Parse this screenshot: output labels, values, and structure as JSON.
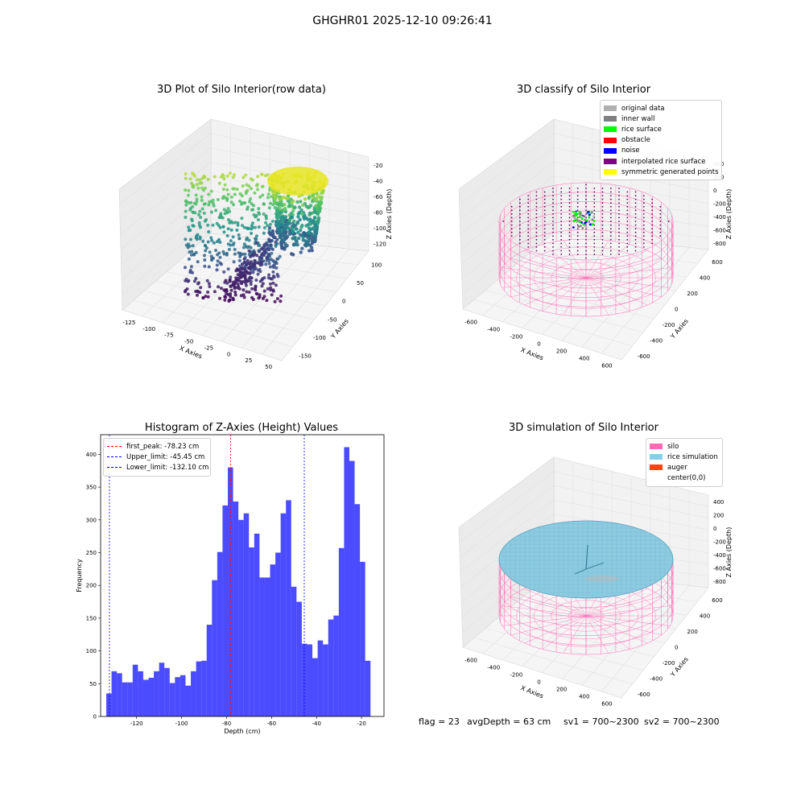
{
  "suptitle": "GHGHR01 2025-12-10 09:26:41",
  "footer": {
    "flag": "flag = 23",
    "avg_depth": "avgDepth = 63 cm",
    "sv1": "sv1 = 700~2300",
    "sv2": "sv2 = 700~2300"
  },
  "panels": {
    "raw": {
      "title": "3D Plot of Silo Interior(row data)",
      "x_label": "X Axies",
      "y_label": "Y Axies",
      "z_label": "Z Axies (Depth)",
      "x_ticks": [
        "-125",
        "-100",
        "-75",
        "-50",
        "-25",
        "0",
        "25",
        "50"
      ],
      "y_ticks": [
        "100",
        "50",
        "0",
        "-50",
        "-100",
        "-150"
      ],
      "z_ticks": [
        "-20",
        "-40",
        "-60",
        "-80",
        "-100",
        "-120"
      ]
    },
    "classify": {
      "title": "3D classify of Silo Interior",
      "x_label": "X Axies",
      "y_label": "Y Axies",
      "z_label": "Z Axies (Depth)",
      "x_ticks": [
        "-600",
        "-400",
        "-200",
        "0",
        "200",
        "400",
        "600"
      ],
      "y_ticks": [
        "600",
        "400",
        "200",
        "0",
        "-200",
        "-400",
        "-600"
      ],
      "z_ticks": [
        "400",
        "200",
        "0",
        "-200",
        "-400",
        "-600",
        "-800"
      ],
      "legend": [
        {
          "label": "original data",
          "color": "#b0b0b0"
        },
        {
          "label": "inner wall",
          "color": "#808080"
        },
        {
          "label": "rice surface",
          "color": "#00ff00"
        },
        {
          "label": "obstacle",
          "color": "#ff0000"
        },
        {
          "label": "noise",
          "color": "#0000ff"
        },
        {
          "label": "interpolated rice surface",
          "color": "#800080"
        },
        {
          "label": "symmetric generated points",
          "color": "#ffff00"
        }
      ]
    },
    "simulation": {
      "title": "3D simulation of Silo Interior",
      "x_label": "X Axies",
      "y_label": "Y Axies",
      "z_label": "Z Axies (Depth)",
      "x_ticks": [
        "-600",
        "-400",
        "-200",
        "0",
        "200",
        "400",
        "600"
      ],
      "y_ticks": [
        "600",
        "400",
        "200",
        "0",
        "-200",
        "-400",
        "-600"
      ],
      "z_ticks": [
        "400",
        "200",
        "0",
        "-200",
        "-400",
        "-600",
        "-800"
      ],
      "legend": [
        {
          "label": "silo",
          "color": "#ff69b4"
        },
        {
          "label": "rice simulation",
          "color": "#87ceeb"
        },
        {
          "label": "auger",
          "color": "#ff4500"
        },
        {
          "label": "center(0,0)",
          "color": ""
        }
      ]
    }
  },
  "chart_data": [
    {
      "type": "scatter",
      "title": "3D Plot of Silo Interior(row data)",
      "xlabel": "X Axies",
      "ylabel": "Y Axies",
      "zlabel": "Z Axies (Depth)",
      "xlim": [
        -140,
        60
      ],
      "ylim": [
        -160,
        110
      ],
      "zlim": [
        -130,
        -15
      ],
      "colormap": "viridis"
    },
    {
      "type": "scatter",
      "title": "3D classify of Silo Interior",
      "xlabel": "X Axies",
      "ylabel": "Y Axies",
      "zlabel": "Z Axies (Depth)",
      "xlim": [
        -700,
        700
      ],
      "ylim": [
        -700,
        700
      ],
      "zlim": [
        -900,
        500
      ],
      "legend_position": "top-right"
    },
    {
      "type": "bar",
      "title": "Histogram of Z-Axies (Height) Values",
      "xlabel": "Depth (cm)",
      "ylabel": "Frequency",
      "xlim": [
        -136,
        -10
      ],
      "ylim": [
        0,
        430
      ],
      "x_ticks": [
        -120,
        -100,
        -80,
        -60,
        -40,
        -20
      ],
      "y_ticks": [
        0,
        50,
        100,
        150,
        200,
        250,
        300,
        350,
        400
      ],
      "bar_color": "#0000ff",
      "bin_start": -133.5,
      "bin_width": 2.35,
      "values": [
        35,
        69,
        66,
        52,
        52,
        79,
        69,
        56,
        59,
        69,
        82,
        74,
        51,
        60,
        63,
        47,
        69,
        84,
        85,
        140,
        208,
        251,
        322,
        380,
        328,
        300,
        310,
        258,
        279,
        212,
        212,
        232,
        250,
        310,
        330,
        198,
        175,
        111,
        110,
        89,
        116,
        110,
        148,
        154,
        257,
        411,
        390,
        324,
        236,
        85
      ],
      "vlines": [
        {
          "label": "first_peak: -78.23 cm",
          "x": -78.23,
          "color": "#ff0000"
        },
        {
          "label": "Upper_limit: -45.45 cm",
          "x": -45.45,
          "color": "#0000ff"
        },
        {
          "label": "Lower_limit: -132.10 cm",
          "x": -132.1,
          "color": "#0000ff"
        }
      ],
      "legend_position": "top-left"
    },
    {
      "type": "scatter",
      "title": "3D simulation of Silo Interior",
      "xlabel": "X Axies",
      "ylabel": "Y Axies",
      "zlabel": "Z Axies (Depth)",
      "xlim": [
        -700,
        700
      ],
      "ylim": [
        -700,
        700
      ],
      "zlim": [
        -900,
        500
      ],
      "legend_position": "top-right"
    }
  ]
}
